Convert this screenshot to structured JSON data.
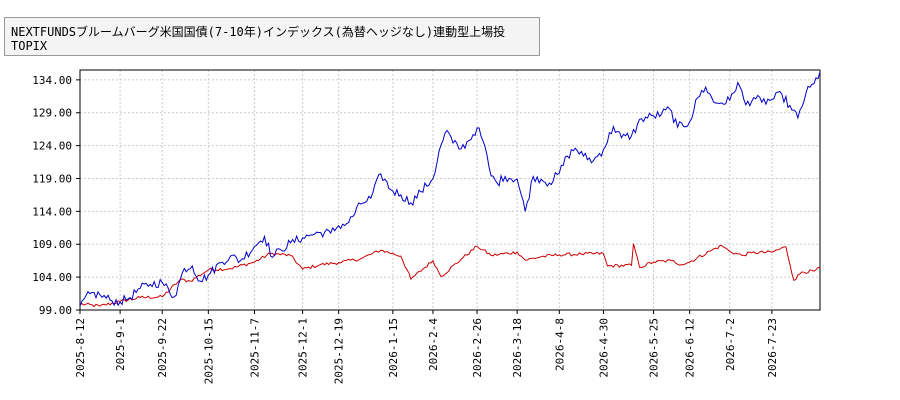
{
  "chart_data": {
    "type": "line",
    "title": "",
    "xlabel": "",
    "ylabel": "",
    "ylim": [
      99.0,
      135.5
    ],
    "grid": true,
    "legend": {
      "placement": "top-left",
      "entries": [
        "NEXTFUNDSブルームバーグ米国国債(7-10年)インデックス(為替ヘッジなし)連動型上場投",
        "TOPIX"
      ]
    },
    "y_ticks": [
      "99.00",
      "104.00",
      "109.00",
      "114.00",
      "119.00",
      "124.00",
      "129.00",
      "134.00"
    ],
    "x_ticks": [
      "2025-8-12",
      "2025-9-1",
      "2025-9-22",
      "2025-10-15",
      "2025-11-7",
      "2025-12-1",
      "2025-12-19",
      "2026-1-15",
      "2026-2-4",
      "2026-2-26",
      "2026-3-18",
      "2026-4-8",
      "2026-4-30",
      "2026-5-25",
      "2026-6-12",
      "2026-7-2",
      "2026-7-23"
    ],
    "x_tick_index": [
      0,
      20,
      41,
      64,
      87,
      111,
      129,
      156,
      176,
      198,
      218,
      239,
      261,
      286,
      304,
      324,
      345
    ],
    "n_points": 370,
    "series": [
      {
        "name": "NEXTFUNDSブルームバーグ米国国債(7-10年)インデックス(為替ヘッジなし)連動型上場投",
        "color": "#cc0000",
        "points": [
          [
            0,
            99.9
          ],
          [
            10,
            99.6
          ],
          [
            20,
            100.3
          ],
          [
            30,
            100.9
          ],
          [
            41,
            101.0
          ],
          [
            50,
            103.6
          ],
          [
            55,
            103.4
          ],
          [
            64,
            105.1
          ],
          [
            75,
            105.3
          ],
          [
            87,
            106.3
          ],
          [
            95,
            107.6
          ],
          [
            105,
            107.3
          ],
          [
            111,
            105.2
          ],
          [
            120,
            105.9
          ],
          [
            129,
            106.2
          ],
          [
            140,
            106.8
          ],
          [
            150,
            108.1
          ],
          [
            160,
            107.2
          ],
          [
            165,
            103.7
          ],
          [
            176,
            106.5
          ],
          [
            180,
            104.1
          ],
          [
            190,
            106.7
          ],
          [
            198,
            108.7
          ],
          [
            205,
            107.3
          ],
          [
            218,
            107.8
          ],
          [
            222,
            106.6
          ],
          [
            230,
            107.1
          ],
          [
            239,
            107.4
          ],
          [
            250,
            107.5
          ],
          [
            261,
            107.6
          ],
          [
            263,
            105.7
          ],
          [
            275,
            105.8
          ],
          [
            276,
            109.1
          ],
          [
            279,
            105.5
          ],
          [
            286,
            106.3
          ],
          [
            295,
            106.5
          ],
          [
            300,
            105.9
          ],
          [
            304,
            106.3
          ],
          [
            315,
            108.1
          ],
          [
            320,
            108.8
          ],
          [
            324,
            107.9
          ],
          [
            330,
            107.3
          ],
          [
            335,
            107.7
          ],
          [
            345,
            107.8
          ],
          [
            352,
            108.6
          ],
          [
            356,
            103.5
          ],
          [
            360,
            104.8
          ],
          [
            366,
            104.9
          ],
          [
            369,
            105.4
          ]
        ]
      },
      {
        "name": "TOPIX",
        "color": "#0000cc",
        "points": [
          [
            0,
            99.6
          ],
          [
            5,
            101.5
          ],
          [
            10,
            101.3
          ],
          [
            15,
            100.5
          ],
          [
            20,
            100.2
          ],
          [
            25,
            100.9
          ],
          [
            30,
            102.3
          ],
          [
            35,
            102.9
          ],
          [
            41,
            103.2
          ],
          [
            47,
            101.0
          ],
          [
            52,
            105.3
          ],
          [
            56,
            105.7
          ],
          [
            60,
            103.4
          ],
          [
            64,
            104.3
          ],
          [
            70,
            106.2
          ],
          [
            75,
            107.2
          ],
          [
            80,
            106.5
          ],
          [
            87,
            108.7
          ],
          [
            92,
            110.2
          ],
          [
            96,
            107.0
          ],
          [
            100,
            108.2
          ],
          [
            105,
            109.2
          ],
          [
            111,
            110.0
          ],
          [
            115,
            110.4
          ],
          [
            120,
            110.8
          ],
          [
            125,
            110.7
          ],
          [
            129,
            111.8
          ],
          [
            134,
            112.3
          ],
          [
            140,
            115.1
          ],
          [
            145,
            116.0
          ],
          [
            150,
            119.7
          ],
          [
            155,
            117.3
          ],
          [
            160,
            116.5
          ],
          [
            165,
            115.3
          ],
          [
            170,
            117.0
          ],
          [
            176,
            119.0
          ],
          [
            180,
            124.1
          ],
          [
            183,
            126.3
          ],
          [
            186,
            124.4
          ],
          [
            190,
            123.5
          ],
          [
            194,
            124.8
          ],
          [
            198,
            126.7
          ],
          [
            201,
            124.7
          ],
          [
            205,
            119.4
          ],
          [
            208,
            118.3
          ],
          [
            212,
            119.3
          ],
          [
            218,
            118.9
          ],
          [
            222,
            114.0
          ],
          [
            226,
            119.3
          ],
          [
            230,
            118.9
          ],
          [
            234,
            118.3
          ],
          [
            239,
            119.8
          ],
          [
            243,
            122.4
          ],
          [
            247,
            123.6
          ],
          [
            251,
            122.4
          ],
          [
            256,
            121.7
          ],
          [
            261,
            123.4
          ],
          [
            266,
            126.9
          ],
          [
            270,
            125.2
          ],
          [
            275,
            125.5
          ],
          [
            280,
            128.1
          ],
          [
            286,
            128.5
          ],
          [
            290,
            128.8
          ],
          [
            294,
            129.6
          ],
          [
            298,
            126.8
          ],
          [
            304,
            127.6
          ],
          [
            308,
            131.3
          ],
          [
            312,
            132.9
          ],
          [
            316,
            130.6
          ],
          [
            320,
            130.5
          ],
          [
            324,
            130.9
          ],
          [
            328,
            133.6
          ],
          [
            332,
            130.2
          ],
          [
            336,
            131.3
          ],
          [
            340,
            130.6
          ],
          [
            345,
            131.0
          ],
          [
            350,
            131.8
          ],
          [
            355,
            129.4
          ],
          [
            358,
            128.2
          ],
          [
            362,
            132.0
          ],
          [
            366,
            133.4
          ],
          [
            369,
            135.2
          ]
        ]
      }
    ]
  }
}
